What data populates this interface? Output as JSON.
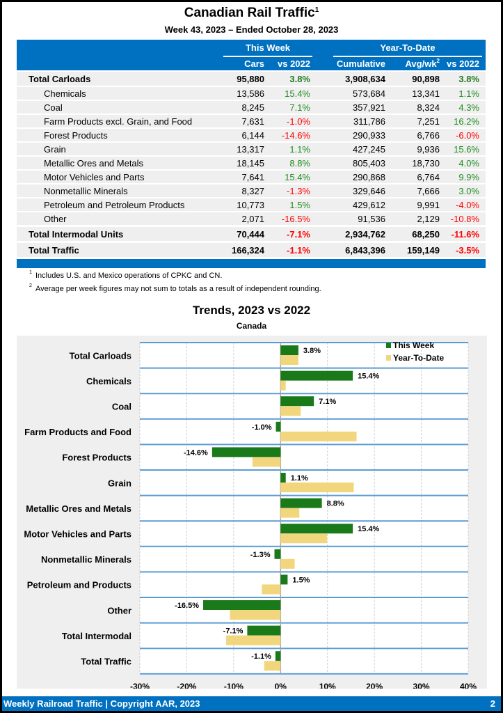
{
  "header": {
    "title": "Canadian Rail Traffic",
    "title_sup": "1",
    "subtitle": "Week 43, 2023 – Ended October 28, 2023"
  },
  "table": {
    "group_this_week": "This Week",
    "group_ytd": "Year-To-Date",
    "col_cars": "Cars",
    "col_vs2022_week": "vs 2022",
    "col_cumulative": "Cumulative",
    "col_avgwk": "Avg/wk",
    "col_avgwk_sup": "2",
    "col_vs2022_ytd": "vs 2022",
    "rows": [
      {
        "label": "Total Carloads",
        "cars": "95,880",
        "week_pct": "3.8%",
        "cumulative": "3,908,634",
        "avgwk": "90,898",
        "ytd_pct": "3.8%"
      },
      {
        "label": "Chemicals",
        "cars": "13,586",
        "week_pct": "15.4%",
        "cumulative": "573,684",
        "avgwk": "13,341",
        "ytd_pct": "1.1%"
      },
      {
        "label": "Coal",
        "cars": "8,245",
        "week_pct": "7.1%",
        "cumulative": "357,921",
        "avgwk": "8,324",
        "ytd_pct": "4.3%"
      },
      {
        "label": "Farm Products excl. Grain, and Food",
        "cars": "7,631",
        "week_pct": "-1.0%",
        "cumulative": "311,786",
        "avgwk": "7,251",
        "ytd_pct": "16.2%"
      },
      {
        "label": "Forest Products",
        "cars": "6,144",
        "week_pct": "-14.6%",
        "cumulative": "290,933",
        "avgwk": "6,766",
        "ytd_pct": "-6.0%"
      },
      {
        "label": "Grain",
        "cars": "13,317",
        "week_pct": "1.1%",
        "cumulative": "427,245",
        "avgwk": "9,936",
        "ytd_pct": "15.6%"
      },
      {
        "label": "Metallic Ores and Metals",
        "cars": "18,145",
        "week_pct": "8.8%",
        "cumulative": "805,403",
        "avgwk": "18,730",
        "ytd_pct": "4.0%"
      },
      {
        "label": "Motor Vehicles and Parts",
        "cars": "7,641",
        "week_pct": "15.4%",
        "cumulative": "290,868",
        "avgwk": "6,764",
        "ytd_pct": "9.9%"
      },
      {
        "label": "Nonmetallic Minerals",
        "cars": "8,327",
        "week_pct": "-1.3%",
        "cumulative": "329,646",
        "avgwk": "7,666",
        "ytd_pct": "3.0%"
      },
      {
        "label": "Petroleum and Petroleum Products",
        "cars": "10,773",
        "week_pct": "1.5%",
        "cumulative": "429,612",
        "avgwk": "9,991",
        "ytd_pct": "-4.0%"
      },
      {
        "label": "Other",
        "cars": "2,071",
        "week_pct": "-16.5%",
        "cumulative": "91,536",
        "avgwk": "2,129",
        "ytd_pct": "-10.8%"
      },
      {
        "label": "Total Intermodal Units",
        "cars": "70,444",
        "week_pct": "-7.1%",
        "cumulative": "2,934,762",
        "avgwk": "68,250",
        "ytd_pct": "-11.6%"
      },
      {
        "label": "Total Traffic",
        "cars": "166,324",
        "week_pct": "-1.1%",
        "cumulative": "6,843,396",
        "avgwk": "159,149",
        "ytd_pct": "-3.5%"
      }
    ]
  },
  "footnotes": [
    {
      "sup": "1",
      "text": "Includes U.S. and Mexico operations of CPKC and CN."
    },
    {
      "sup": "2",
      "text": "Average per week figures may not sum to totals as a result of independent rounding."
    }
  ],
  "colors": {
    "brand_blue": "#0070c0",
    "positive": "#228b22",
    "negative": "#ff0000",
    "this_week_bar": "#1a7a1a",
    "ytd_bar": "#f2d67e"
  },
  "chart_data": {
    "type": "bar",
    "orientation": "horizontal",
    "title": "Trends, 2023 vs 2022",
    "subtitle": "Canada",
    "xlabel": "",
    "ylabel": "",
    "xlim": [
      -30,
      40
    ],
    "x_ticks": [
      -30,
      -20,
      -10,
      0,
      10,
      20,
      30,
      40
    ],
    "x_tick_labels": [
      "-30%",
      "-20%",
      "-10%",
      "0%",
      "10%",
      "20%",
      "30%",
      "40%"
    ],
    "grid": true,
    "legend_position": "top-right",
    "categories": [
      "Total Carloads",
      "Chemicals",
      "Coal",
      "Farm Products and Food",
      "Forest Products",
      "Grain",
      "Metallic Ores and Metals",
      "Motor Vehicles and Parts",
      "Nonmetallic Minerals",
      "Petroleum and Products",
      "Other",
      "Total Intermodal",
      "Total Traffic"
    ],
    "series": [
      {
        "name": "This Week",
        "values": [
          3.8,
          15.4,
          7.1,
          -1.0,
          -14.6,
          1.1,
          8.8,
          15.4,
          -1.3,
          1.5,
          -16.5,
          -7.1,
          -1.1
        ],
        "data_labels": [
          "3.8%",
          "15.4%",
          "7.1%",
          "-1.0%",
          "-14.6%",
          "1.1%",
          "8.8%",
          "15.4%",
          "-1.3%",
          "1.5%",
          "-16.5%",
          "-7.1%",
          "-1.1%"
        ]
      },
      {
        "name": "Year-To-Date",
        "values": [
          3.8,
          1.1,
          4.3,
          16.2,
          -6.0,
          15.6,
          4.0,
          9.9,
          3.0,
          -4.0,
          -10.8,
          -11.6,
          -3.5
        ]
      }
    ]
  },
  "footer": {
    "left": "Weekly Railroad Traffic | Copyright AAR, 2023",
    "page": "2"
  }
}
